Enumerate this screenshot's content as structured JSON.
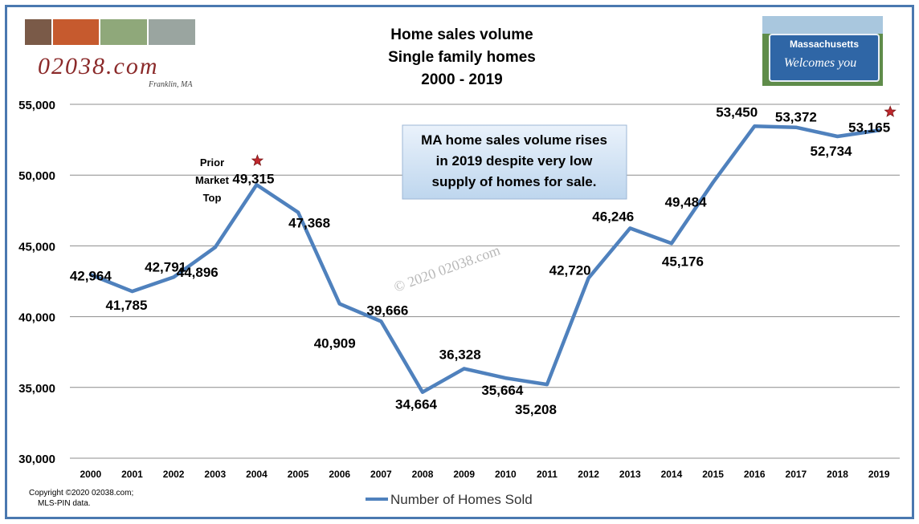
{
  "header": {
    "logo_text": "02038.com",
    "logo_subtext": "Franklin, MA",
    "sign_line1": "Massachusetts",
    "sign_line2": "Welcomes you"
  },
  "footer": {
    "copyright_line1": "Copyright ©2020  02038.com;",
    "copyright_line2": "MLS-PIN data."
  },
  "chart_data": {
    "type": "line",
    "title_lines": [
      "Home sales volume",
      "Single family homes",
      "2000 - 2019"
    ],
    "categories": [
      "2000",
      "2001",
      "2002",
      "2003",
      "2004",
      "2005",
      "2006",
      "2007",
      "2008",
      "2009",
      "2010",
      "2011",
      "2012",
      "2013",
      "2014",
      "2015",
      "2016",
      "2017",
      "2018",
      "2019"
    ],
    "series": [
      {
        "name": "Number of Homes Sold",
        "values": [
          42964,
          41785,
          42791,
          44896,
          49315,
          47368,
          40909,
          39666,
          34664,
          36328,
          35664,
          35208,
          42720,
          46246,
          45176,
          49484,
          53450,
          53372,
          52734,
          53165
        ],
        "labels": [
          "42,964",
          "41,785",
          "42,791",
          "44,896",
          "49,315",
          "47,368",
          "40,909",
          "39,666",
          "34,664",
          "36,328",
          "35,664",
          "35,208",
          "42,720",
          "46,246",
          "45,176",
          "49,484",
          "53,450",
          "53,372",
          "52,734",
          "53,165"
        ],
        "color": "#4f81bd"
      }
    ],
    "ylim": [
      30000,
      55000
    ],
    "yticks": [
      30000,
      35000,
      40000,
      45000,
      50000,
      55000
    ],
    "ytick_labels": [
      "30,000",
      "35,000",
      "40,000",
      "45,000",
      "50,000",
      "55,000"
    ],
    "grid": true,
    "legend_position": "bottom",
    "annotations": {
      "callout_lines": [
        "MA home sales volume rises",
        "in 2019 despite very low",
        "supply of homes for sale."
      ],
      "prior_top_lines": [
        "Prior",
        "Market",
        "Top"
      ],
      "watermark": "© 2020 02038.com",
      "star_color": "#c0272d"
    }
  }
}
